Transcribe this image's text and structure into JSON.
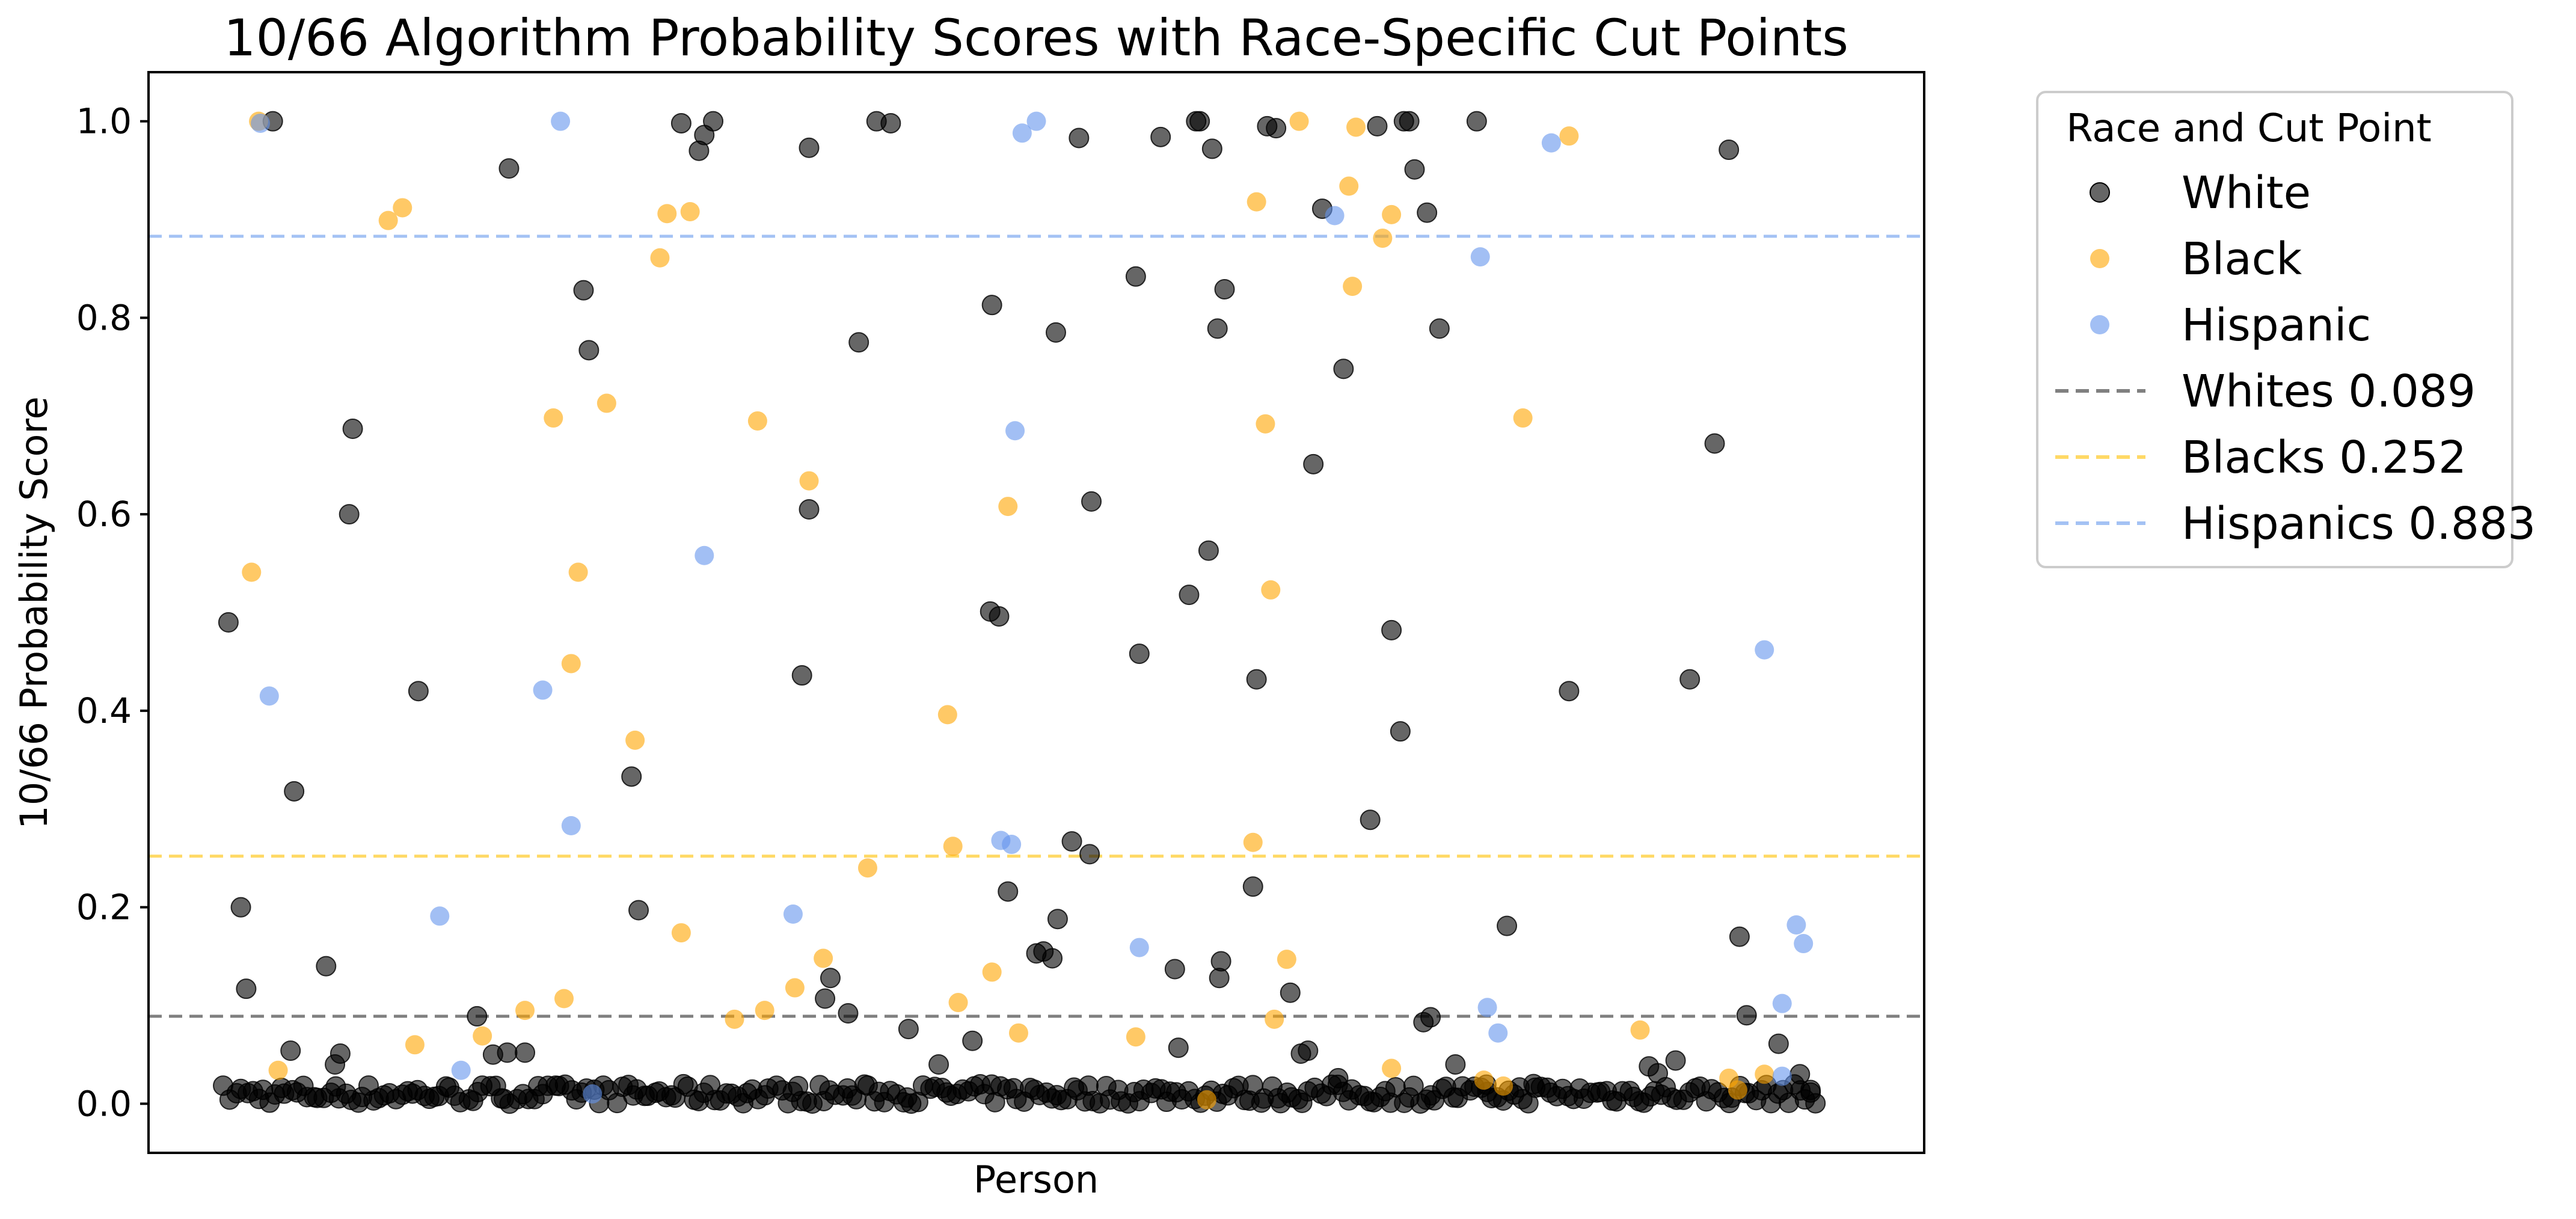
{
  "chart_data": {
    "type": "scatter",
    "title": "10/66 Algorithm Probability Scores with Race-Specific Cut Points",
    "xlabel": "Person",
    "ylabel": "10/66 Probability Score",
    "ylim": [
      -0.05,
      1.05
    ],
    "xlim": [
      0,
      1000
    ],
    "yticks": [
      "0.0",
      "0.2",
      "0.4",
      "0.6",
      "0.8",
      "1.0"
    ],
    "grid": false,
    "legend": {
      "title": "Race and Cut Point",
      "placement": "outside-top-right",
      "entries": [
        {
          "label": "White",
          "kind": "marker",
          "color": "#000000"
        },
        {
          "label": "Black",
          "kind": "marker",
          "color": "#FFA500"
        },
        {
          "label": "Hispanic",
          "kind": "marker",
          "color": "#6495ED"
        },
        {
          "label": "Whites 0.089",
          "kind": "line",
          "color": "#808080"
        },
        {
          "label": "Blacks 0.252",
          "kind": "line",
          "color": "#FFD966"
        },
        {
          "label": "Hispanics 0.883",
          "kind": "line",
          "color": "#A4C2F4"
        }
      ]
    },
    "cut_points": [
      {
        "name": "Whites",
        "value": 0.089,
        "color": "#808080"
      },
      {
        "name": "Blacks",
        "value": 0.252,
        "color": "#FFD966"
      },
      {
        "name": "Hispanics",
        "value": 0.883,
        "color": "#A4C2F4"
      }
    ],
    "series": [
      {
        "name": "White",
        "color": "#000000",
        "points": [
          [
            45,
            0.49
          ],
          [
            52,
            0.2
          ],
          [
            55,
            0.117
          ],
          [
            70,
            1.0
          ],
          [
            80,
            0.054
          ],
          [
            82,
            0.318
          ],
          [
            100,
            0.14
          ],
          [
            105,
            0.04
          ],
          [
            108,
            0.051
          ],
          [
            113,
            0.6
          ],
          [
            115,
            0.687
          ],
          [
            152,
            0.42
          ],
          [
            185,
            0.089
          ],
          [
            194,
            0.05
          ],
          [
            202,
            0.052
          ],
          [
            203,
            0.952
          ],
          [
            212,
            0.052
          ],
          [
            245,
            0.828
          ],
          [
            248,
            0.767
          ],
          [
            272,
            0.333
          ],
          [
            276,
            0.197
          ],
          [
            300,
            0.998
          ],
          [
            310,
            0.97
          ],
          [
            313,
            0.986
          ],
          [
            318,
            1.0
          ],
          [
            368,
            0.436
          ],
          [
            372,
            0.973
          ],
          [
            372,
            0.605
          ],
          [
            381,
            0.107
          ],
          [
            384,
            0.128
          ],
          [
            394,
            0.092
          ],
          [
            400,
            0.775
          ],
          [
            410,
            1.0
          ],
          [
            418,
            0.998
          ],
          [
            428,
            0.076
          ],
          [
            445,
            0.04
          ],
          [
            464,
            0.064
          ],
          [
            474,
            0.501
          ],
          [
            475,
            0.813
          ],
          [
            479,
            0.496
          ],
          [
            484,
            0.216
          ],
          [
            500,
            0.153
          ],
          [
            504,
            0.155
          ],
          [
            509,
            0.148
          ],
          [
            511,
            0.785
          ],
          [
            512,
            0.188
          ],
          [
            520,
            0.267
          ],
          [
            524,
            0.983
          ],
          [
            530,
            0.254
          ],
          [
            531,
            0.613
          ],
          [
            556,
            0.842
          ],
          [
            558,
            0.458
          ],
          [
            570,
            0.984
          ],
          [
            578,
            0.137
          ],
          [
            580,
            0.057
          ],
          [
            586,
            0.518
          ],
          [
            590,
            1.0
          ],
          [
            592,
            1.0
          ],
          [
            597,
            0.563
          ],
          [
            599,
            0.972
          ],
          [
            602,
            0.789
          ],
          [
            603,
            0.128
          ],
          [
            604,
            0.145
          ],
          [
            606,
            0.829
          ],
          [
            622,
            0.221
          ],
          [
            624,
            0.432
          ],
          [
            630,
            0.995
          ],
          [
            635,
            0.993
          ],
          [
            643,
            0.113
          ],
          [
            649,
            0.051
          ],
          [
            653,
            0.054
          ],
          [
            656,
            0.651
          ],
          [
            661,
            0.911
          ],
          [
            670,
            0.026
          ],
          [
            673,
            0.748
          ],
          [
            688,
            0.289
          ],
          [
            692,
            0.995
          ],
          [
            700,
            0.482
          ],
          [
            705,
            0.379
          ],
          [
            707,
            1.0
          ],
          [
            710,
            1.0
          ],
          [
            713,
            0.951
          ],
          [
            718,
            0.083
          ],
          [
            720,
            0.907
          ],
          [
            722,
            0.088
          ],
          [
            727,
            0.789
          ],
          [
            736,
            0.04
          ],
          [
            748,
            1.0
          ],
          [
            754,
            0.012
          ],
          [
            765,
            0.181
          ],
          [
            780,
            0.02
          ],
          [
            800,
            0.42
          ],
          [
            845,
            0.038
          ],
          [
            850,
            0.031
          ],
          [
            860,
            0.044
          ],
          [
            868,
            0.432
          ],
          [
            882,
            0.672
          ],
          [
            890,
            0.971
          ],
          [
            900,
            0.09
          ],
          [
            896,
            0.17
          ],
          [
            918,
            0.061
          ],
          [
            930,
            0.03
          ],
          [
            936,
            0.014
          ]
        ],
        "baseline_cluster": {
          "x_range": [
            42,
            938
          ],
          "y_range": [
            0.0,
            0.02
          ]
        }
      },
      {
        "name": "Black",
        "color": "#FFA500",
        "points": [
          [
            58,
            0.541
          ],
          [
            62,
            1.0
          ],
          [
            73,
            0.034
          ],
          [
            135,
            0.899
          ],
          [
            150,
            0.06
          ],
          [
            143,
            0.912
          ],
          [
            188,
            0.069
          ],
          [
            212,
            0.095
          ],
          [
            228,
            0.698
          ],
          [
            234,
            0.107
          ],
          [
            238,
            0.448
          ],
          [
            242,
            0.541
          ],
          [
            258,
            0.713
          ],
          [
            274,
            0.37
          ],
          [
            288,
            0.861
          ],
          [
            292,
            0.906
          ],
          [
            300,
            0.174
          ],
          [
            305,
            0.908
          ],
          [
            330,
            0.086
          ],
          [
            343,
            0.695
          ],
          [
            347,
            0.095
          ],
          [
            364,
            0.118
          ],
          [
            372,
            0.634
          ],
          [
            380,
            0.148
          ],
          [
            405,
            0.24
          ],
          [
            450,
            0.396
          ],
          [
            453,
            0.262
          ],
          [
            456,
            0.103
          ],
          [
            475,
            0.134
          ],
          [
            484,
            0.608
          ],
          [
            490,
            0.072
          ],
          [
            556,
            0.068
          ],
          [
            596,
            0.004
          ],
          [
            622,
            0.266
          ],
          [
            624,
            0.918
          ],
          [
            629,
            0.692
          ],
          [
            632,
            0.523
          ],
          [
            634,
            0.086
          ],
          [
            641,
            0.147
          ],
          [
            648,
            1.0
          ],
          [
            676,
            0.934
          ],
          [
            678,
            0.832
          ],
          [
            680,
            0.994
          ],
          [
            695,
            0.881
          ],
          [
            700,
            0.905
          ],
          [
            700,
            0.036
          ],
          [
            752,
            0.024
          ],
          [
            763,
            0.018
          ],
          [
            774,
            0.698
          ],
          [
            800,
            0.985
          ],
          [
            840,
            0.075
          ],
          [
            890,
            0.026
          ],
          [
            895,
            0.014
          ],
          [
            910,
            0.03
          ]
        ]
      },
      {
        "name": "Hispanic",
        "color": "#6495ED",
        "points": [
          [
            63,
            0.998
          ],
          [
            68,
            0.415
          ],
          [
            164,
            0.191
          ],
          [
            176,
            0.034
          ],
          [
            222,
            0.421
          ],
          [
            232,
            1.0
          ],
          [
            238,
            0.283
          ],
          [
            250,
            0.01
          ],
          [
            313,
            0.558
          ],
          [
            363,
            0.193
          ],
          [
            480,
            0.268
          ],
          [
            486,
            0.264
          ],
          [
            488,
            0.685
          ],
          [
            492,
            0.988
          ],
          [
            500,
            1.0
          ],
          [
            558,
            0.159
          ],
          [
            668,
            0.904
          ],
          [
            750,
            0.862
          ],
          [
            754,
            0.098
          ],
          [
            760,
            0.072
          ],
          [
            790,
            0.978
          ],
          [
            910,
            0.462
          ],
          [
            920,
            0.102
          ],
          [
            920,
            0.028
          ],
          [
            928,
            0.182
          ],
          [
            932,
            0.163
          ]
        ]
      }
    ]
  }
}
